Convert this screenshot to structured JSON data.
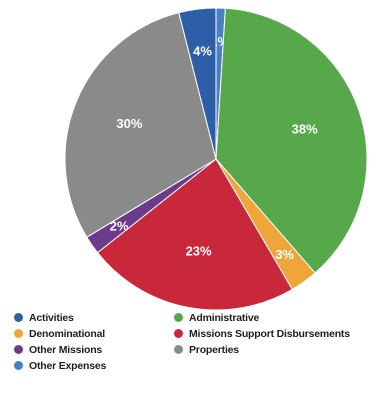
{
  "chart_data": {
    "type": "pie",
    "series": [
      {
        "name": "Activities",
        "value": 4,
        "label": "4%",
        "color": "#2e5ea8"
      },
      {
        "name": "Administrative",
        "value": 38,
        "label": "38%",
        "color": "#56a84a"
      },
      {
        "name": "Denominational",
        "value": 3,
        "label": "3%",
        "color": "#f0a53a"
      },
      {
        "name": "Missions Support Disbursements",
        "value": 23,
        "label": "23%",
        "color": "#c8283a"
      },
      {
        "name": "Other Missions",
        "value": 2,
        "label": "2%",
        "color": "#6e3a8c"
      },
      {
        "name": "Properties",
        "value": 30,
        "label": "30%",
        "color": "#8a8a8a"
      },
      {
        "name": "Other Expenses",
        "value": 1,
        "label": "1%",
        "color": "#4a7fc4"
      }
    ],
    "slice_order": [
      "Other Expenses",
      "Administrative",
      "Denominational",
      "Missions Support Disbursements",
      "Other Missions",
      "Properties",
      "Activities"
    ],
    "legend_position": "bottom",
    "legend_columns": [
      [
        "Activities",
        "Denominational",
        "Other Missions",
        "Other Expenses"
      ],
      [
        "Administrative",
        "Missions Support Disbursements",
        "Properties"
      ]
    ]
  }
}
